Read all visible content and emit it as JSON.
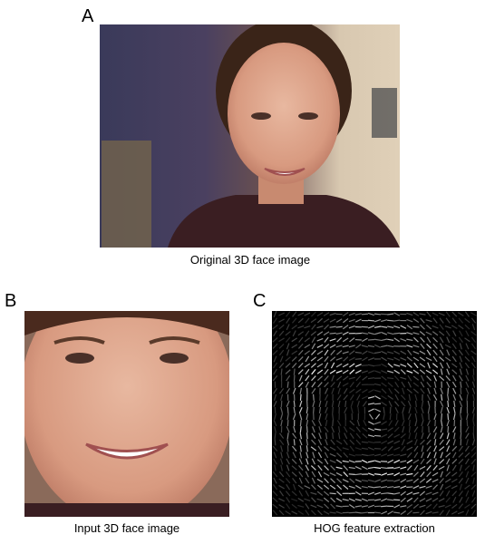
{
  "panels": [
    {
      "label": "A",
      "caption": "Original 3D face image"
    },
    {
      "label": "B",
      "caption": "Input 3D face image"
    },
    {
      "label": "C",
      "caption": "HOG feature extraction"
    }
  ]
}
